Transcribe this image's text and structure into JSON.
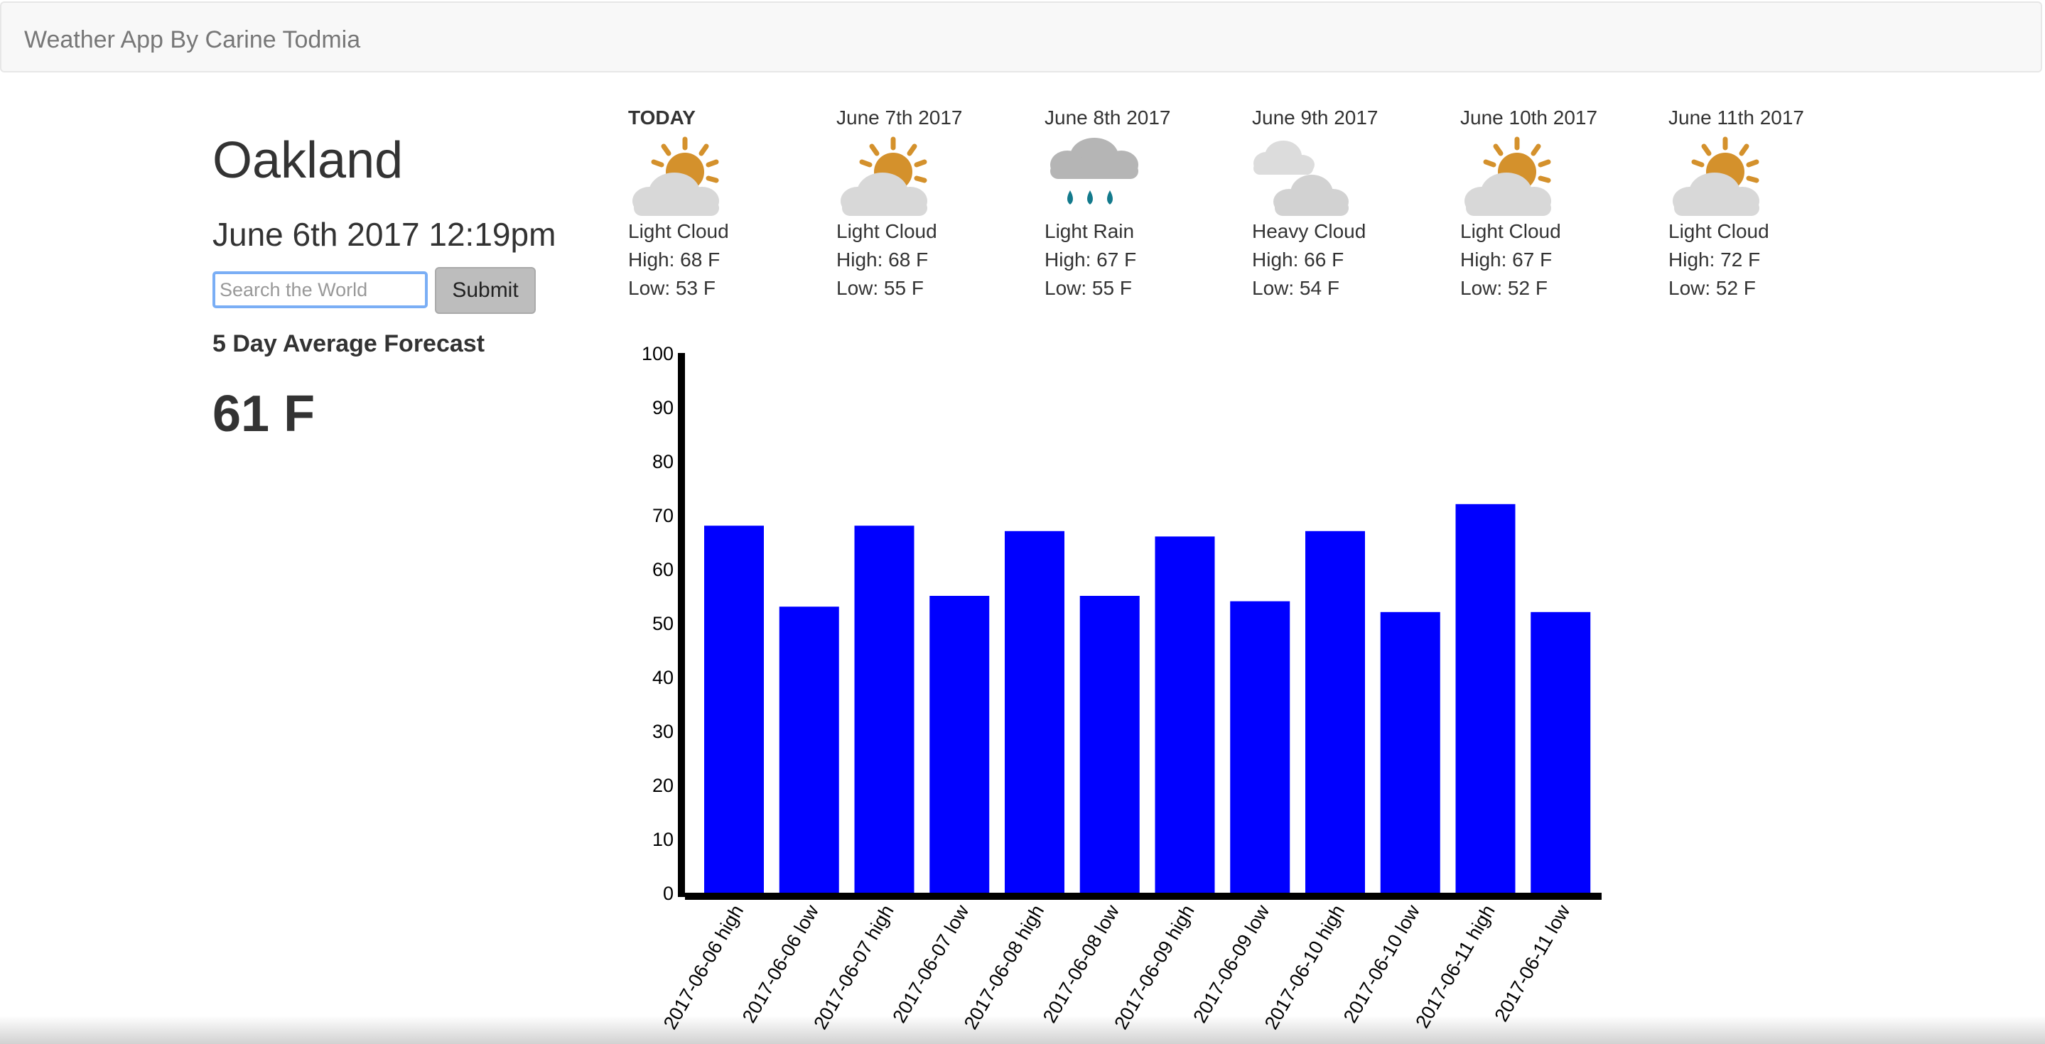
{
  "navbar": {
    "brand": "Weather App By Carine Todmia"
  },
  "location": {
    "city": "Oakland",
    "datetime": "June 6th 2017 12:19pm"
  },
  "search": {
    "placeholder": "Search the World",
    "value": "",
    "submit_label": "Submit"
  },
  "average": {
    "label": "5 Day Average Forecast",
    "value": "61 F"
  },
  "forecast": [
    {
      "label": "TODAY",
      "icon": "light-cloud-icon",
      "condition": "Light Cloud",
      "high": "High: 68 F",
      "low": "Low: 53 F"
    },
    {
      "label": "June 7th 2017",
      "icon": "light-cloud-icon",
      "condition": "Light Cloud",
      "high": "High: 68 F",
      "low": "Low: 55 F"
    },
    {
      "label": "June 8th 2017",
      "icon": "light-rain-icon",
      "condition": "Light Rain",
      "high": "High: 67 F",
      "low": "Low: 55 F"
    },
    {
      "label": "June 9th 2017",
      "icon": "heavy-cloud-icon",
      "condition": "Heavy Cloud",
      "high": "High: 66 F",
      "low": "Low: 54 F"
    },
    {
      "label": "June 10th 2017",
      "icon": "light-cloud-icon",
      "condition": "Light Cloud",
      "high": "High: 67 F",
      "low": "Low: 52 F"
    },
    {
      "label": "June 11th 2017",
      "icon": "light-cloud-icon",
      "condition": "Light Cloud",
      "high": "High: 72 F",
      "low": "Low: 52 F"
    }
  ],
  "colors": {
    "bar": "#0000ff",
    "axis": "#000000",
    "sun": "#d4912c",
    "cloud": "#d8d8d8",
    "rain_cloud": "#b5b5b5",
    "rain_drop": "#137a8c",
    "input_focus": "#7aaef5",
    "button": "#bdbdbd"
  },
  "chart_data": {
    "type": "bar",
    "categories": [
      "2017-06-06 high",
      "2017-06-06 low",
      "2017-06-07 high",
      "2017-06-07 low",
      "2017-06-08 high",
      "2017-06-08 low",
      "2017-06-09 high",
      "2017-06-09 low",
      "2017-06-10 high",
      "2017-06-10 low",
      "2017-06-11 high",
      "2017-06-11 low"
    ],
    "values": [
      68,
      53,
      68,
      55,
      67,
      55,
      66,
      54,
      67,
      52,
      72,
      52
    ],
    "ylim": [
      0,
      100
    ],
    "yticks": [
      "0",
      "10",
      "20",
      "30",
      "40",
      "50",
      "60",
      "70",
      "80",
      "90",
      "100"
    ],
    "title": "",
    "xlabel": "",
    "ylabel": "",
    "grid": false,
    "legend": false
  }
}
